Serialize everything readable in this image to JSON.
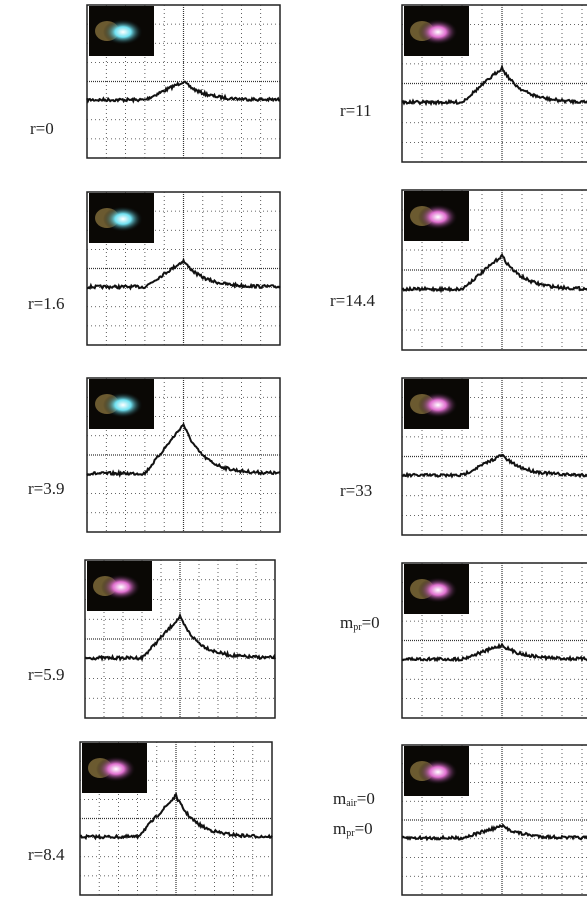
{
  "left_panels": [
    {
      "label": "r=0"
    },
    {
      "label": "r=1.6"
    },
    {
      "label": "r=3.9"
    },
    {
      "label": "r=5.9"
    },
    {
      "label": "r=8.4"
    }
  ],
  "right_panels": [
    {
      "label": "r=11"
    },
    {
      "label": "r=14.4"
    },
    {
      "label": "r=33"
    },
    {
      "label_lines": [
        {
          "var": "m",
          "sub": "pr",
          "tail": "=0"
        }
      ]
    },
    {
      "label_lines": [
        {
          "var": "m",
          "sub": "air",
          "tail": "=0"
        },
        {
          "var": "m",
          "sub": "pr",
          "tail": "=0"
        }
      ]
    }
  ]
}
